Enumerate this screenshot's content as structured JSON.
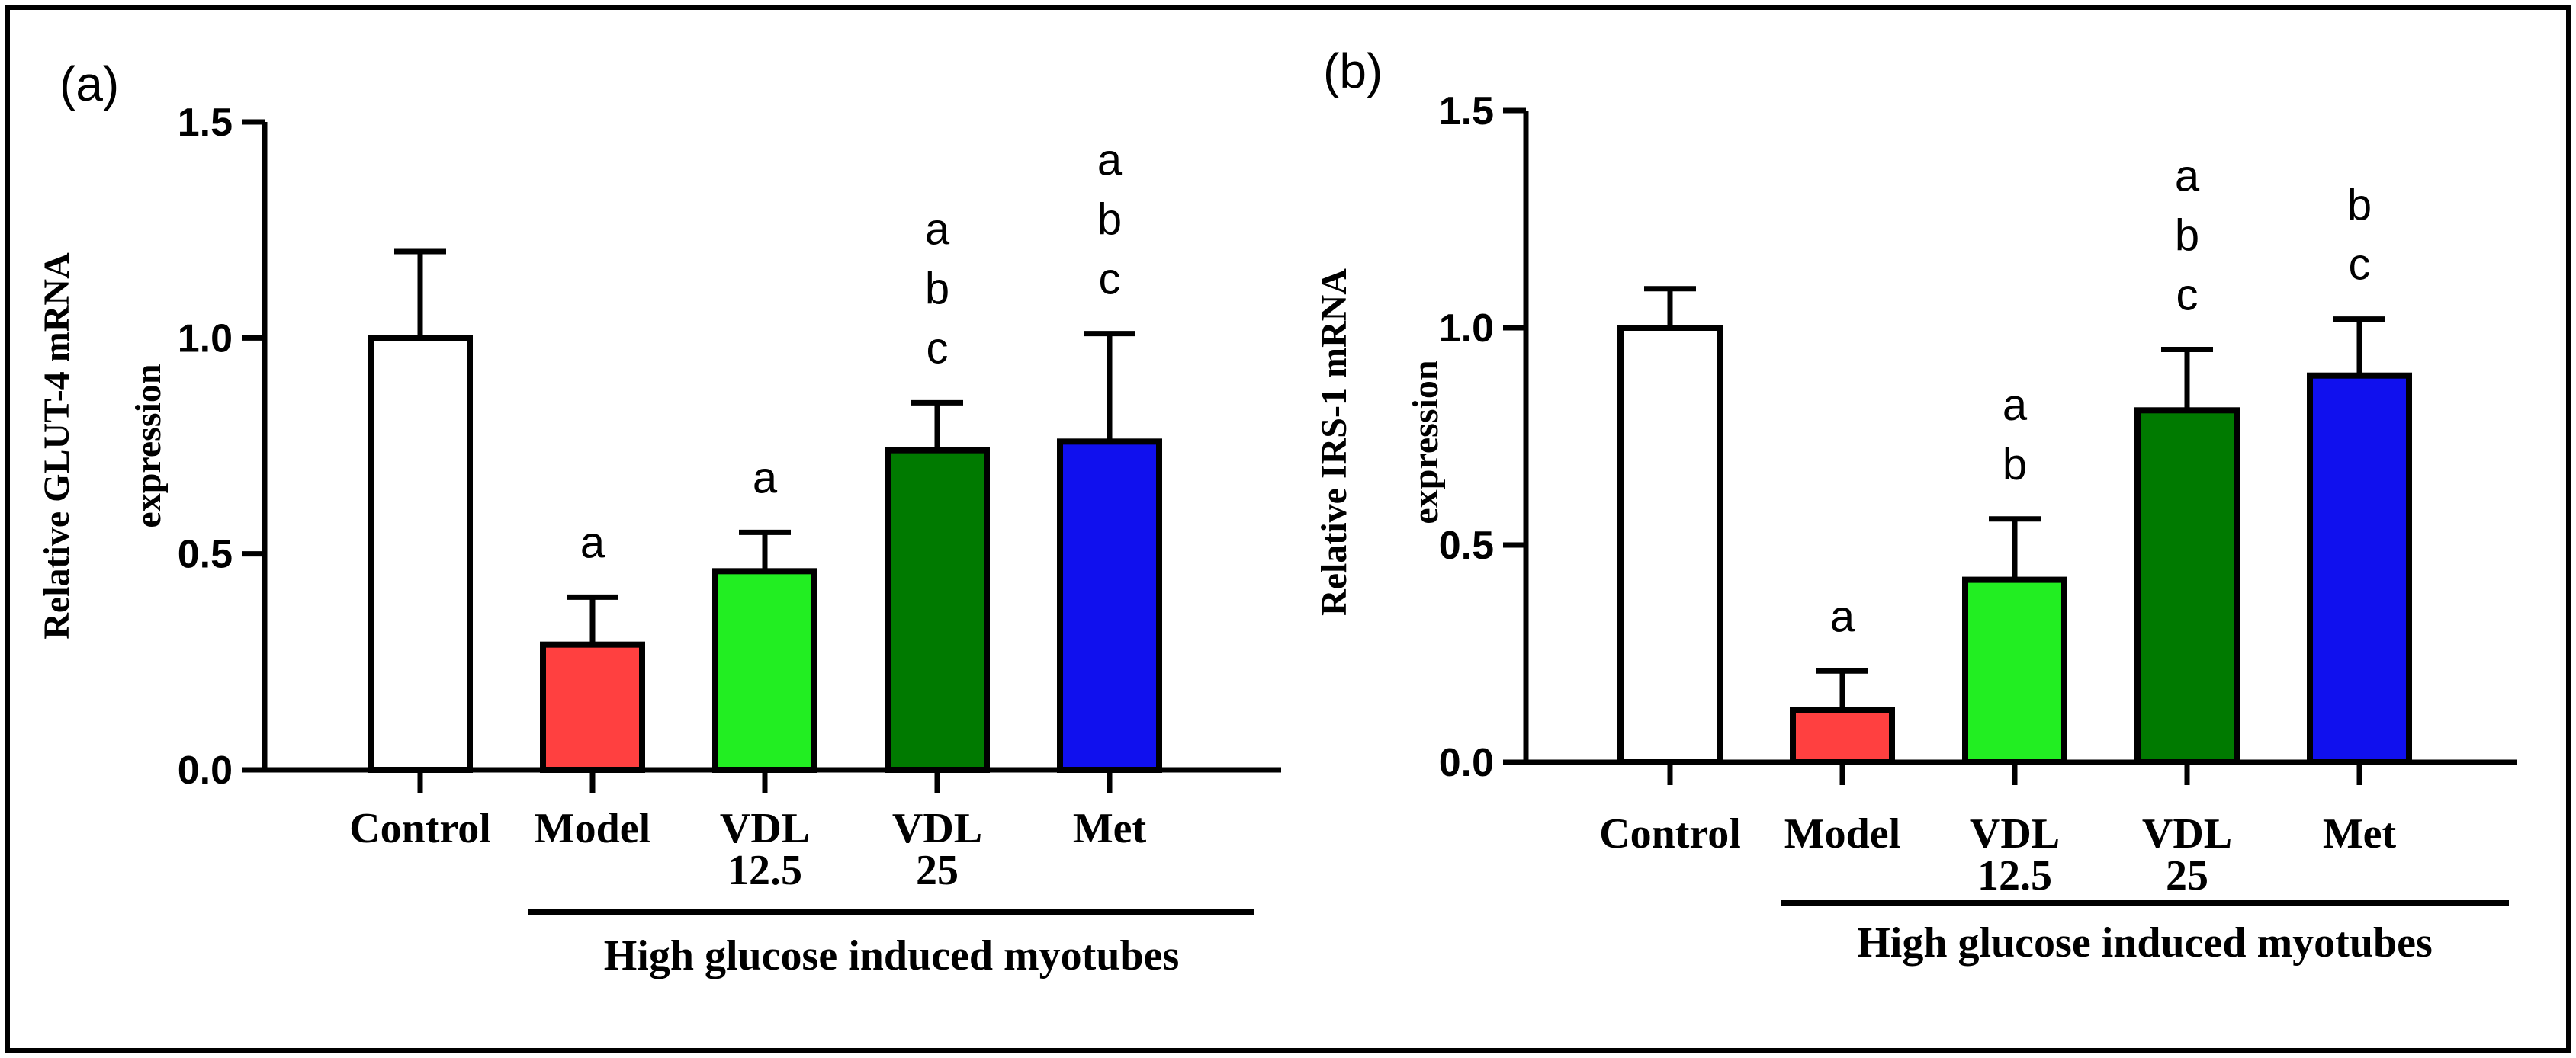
{
  "chart_data": [
    {
      "type": "bar",
      "panel_label": "(a)",
      "title": "",
      "ylabel_lines": [
        "Relative  GLUT-4 mRNA",
        "expression"
      ],
      "xlabel": "",
      "ylim": [
        0,
        1.5
      ],
      "yticks": [
        "0.0",
        "0.5",
        "1.0",
        "1.5"
      ],
      "categories": [
        [
          "Control"
        ],
        [
          "Model"
        ],
        [
          "VDL",
          "12.5"
        ],
        [
          "VDL",
          "25"
        ],
        [
          "Met"
        ]
      ],
      "values": [
        1.0,
        0.29,
        0.46,
        0.74,
        0.76
      ],
      "errors": [
        0.2,
        0.11,
        0.09,
        0.11,
        0.25
      ],
      "colors": [
        "#ffffff",
        "#ff4040",
        "#22ee22",
        "#007a00",
        "#1010ee"
      ],
      "significance": [
        [],
        [
          "a"
        ],
        [
          "a"
        ],
        [
          "a",
          "b",
          "c"
        ],
        [
          "a",
          "b",
          "c"
        ]
      ],
      "group_label": "High glucose induced myotubes"
    },
    {
      "type": "bar",
      "panel_label": "(b)",
      "title": "",
      "ylabel_lines": [
        "Relative  IRS-1  mRNA",
        "expression"
      ],
      "xlabel": "",
      "ylim": [
        0,
        1.5
      ],
      "yticks": [
        "0.0",
        "0.5",
        "1.0",
        "1.5"
      ],
      "categories": [
        [
          "Control"
        ],
        [
          "Model"
        ],
        [
          "VDL",
          "12.5"
        ],
        [
          "VDL",
          "25"
        ],
        [
          "Met"
        ]
      ],
      "values": [
        1.0,
        0.12,
        0.42,
        0.81,
        0.89
      ],
      "errors": [
        0.09,
        0.09,
        0.14,
        0.14,
        0.13
      ],
      "colors": [
        "#ffffff",
        "#ff4040",
        "#22ee22",
        "#007a00",
        "#1010ee"
      ],
      "significance": [
        [],
        [
          "a"
        ],
        [
          "a",
          "b"
        ],
        [
          "a",
          "b",
          "c"
        ],
        [
          "b",
          "c"
        ]
      ],
      "group_label": "High glucose induced myotubes"
    }
  ]
}
